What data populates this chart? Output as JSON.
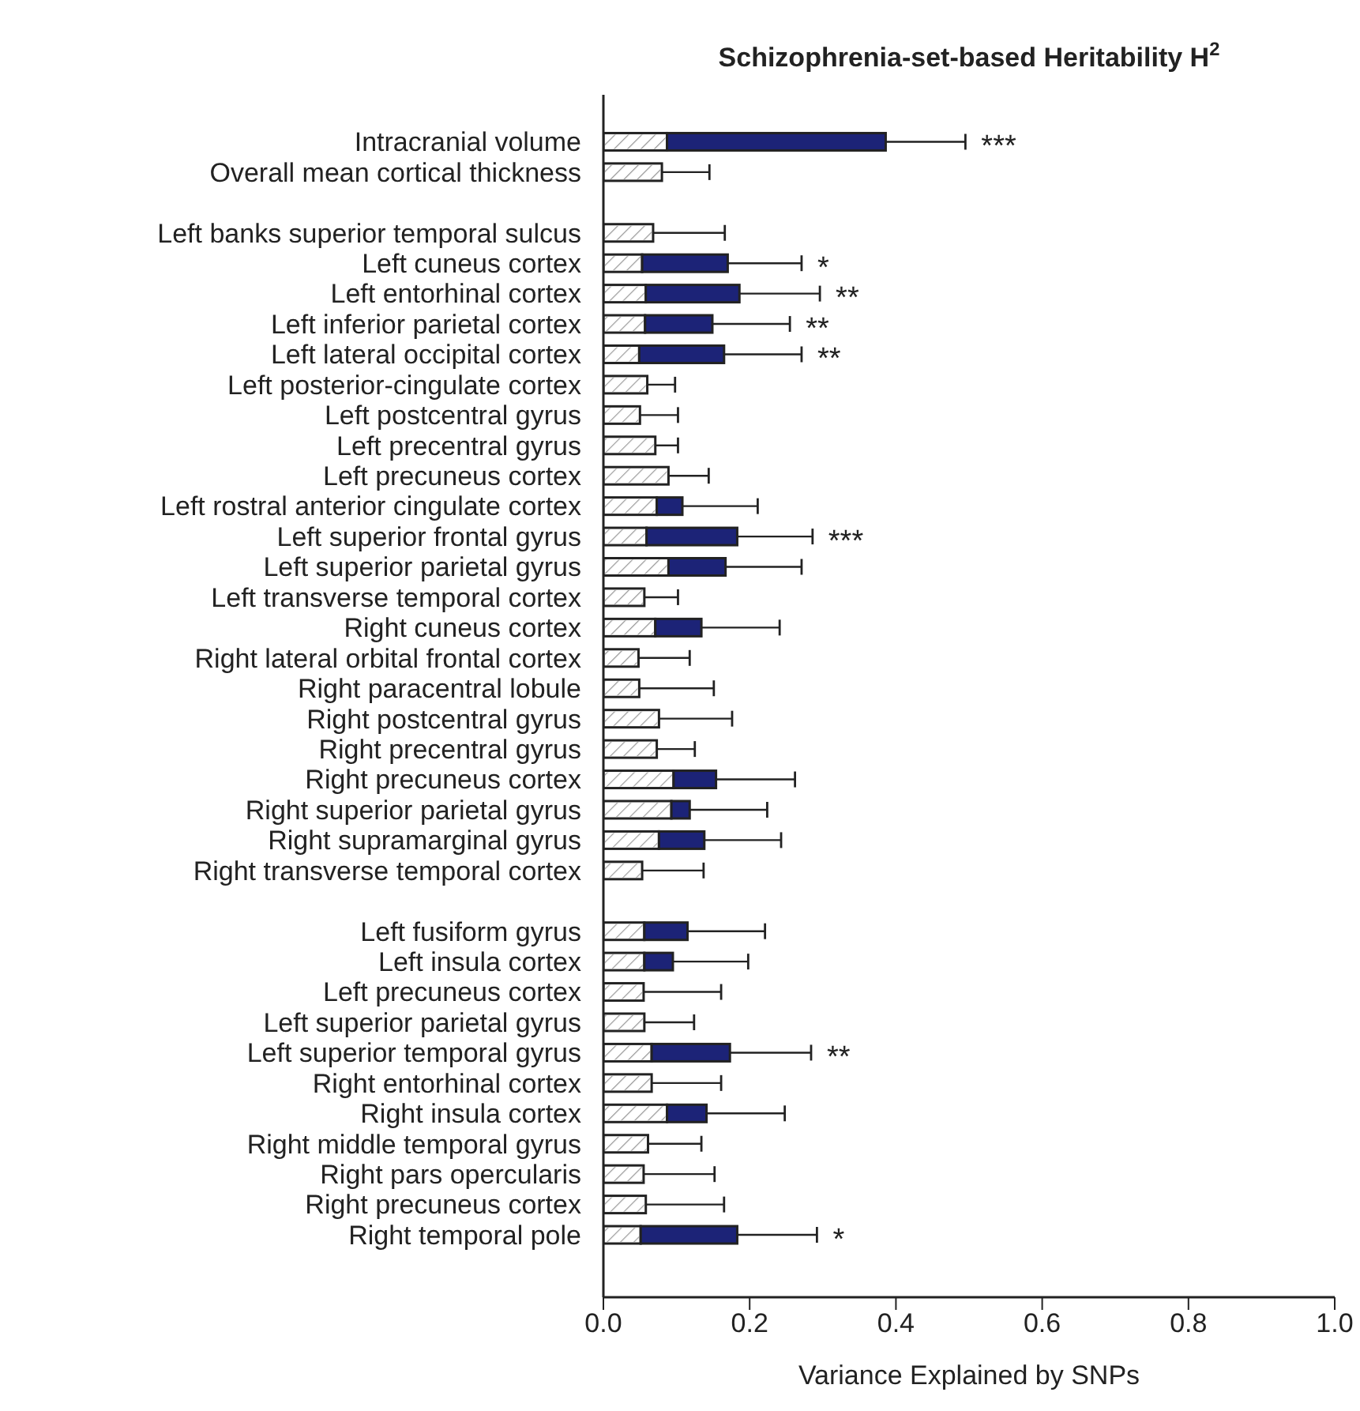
{
  "chart_data": {
    "type": "bar",
    "orientation": "horizontal",
    "stacked": true,
    "title": "Schizophrenia-set-based Heritability H$^{2}$",
    "xlabel": "Variance Explained by SNPs",
    "categories": [
      "Intracranial volume",
      "Overall mean cortical thickness",
      null,
      "Left banks superior temporal sulcus",
      "Left cuneus cortex",
      "Left entorhinal cortex",
      "Left inferior parietal cortex",
      "Left lateral occipital cortex",
      "Left posterior-cingulate cortex",
      "Left postcentral gyrus",
      "Left precentral gyrus",
      "Left precuneus cortex",
      "Left rostral anterior cingulate cortex",
      "Left superior frontal gyrus",
      "Left superior parietal gyrus",
      "Left transverse temporal cortex",
      "Right cuneus cortex",
      "Right lateral orbital frontal cortex",
      "Right paracentral lobule",
      "Right postcentral gyrus",
      "Right precentral gyrus",
      "Right precuneus cortex",
      "Right superior parietal gyrus",
      "Right supramarginal gyrus",
      "Right transverse temporal cortex",
      null,
      "Left fusiform gyrus",
      "Left insula cortex",
      "Left precuneus cortex",
      "Left superior parietal gyrus",
      "Left superior temporal gyrus",
      "Right entorhinal cortex",
      "Right insula cortex",
      "Right middle temporal gyrus",
      "Right pars opercularis",
      "Right precuneus cortex",
      "Right temporal pole"
    ],
    "series": [
      {
        "color": "#ffffff",
        "values": [
          0.087,
          0.08,
          null,
          0.068,
          0.053,
          0.058,
          0.057,
          0.049,
          0.06,
          0.05,
          0.071,
          0.089,
          0.073,
          0.059,
          0.089,
          0.056,
          0.071,
          0.048,
          0.049,
          0.076,
          0.073,
          0.096,
          0.093,
          0.076,
          0.053,
          null,
          0.056,
          0.056,
          0.055,
          0.056,
          0.066,
          0.066,
          0.087,
          0.061,
          0.055,
          0.058,
          0.051
        ],
        "errors": [
          null,
          [
            0.08,
            0.145
          ],
          null,
          [
            0.068,
            0.166
          ],
          null,
          null,
          null,
          null,
          [
            0.06,
            0.098
          ],
          [
            0.05,
            0.102
          ],
          [
            0.071,
            0.102
          ],
          [
            0.089,
            0.144
          ],
          null,
          null,
          null,
          [
            0.056,
            0.102
          ],
          null,
          [
            0.048,
            0.118
          ],
          [
            0.049,
            0.151
          ],
          [
            0.076,
            0.176
          ],
          [
            0.073,
            0.125
          ],
          null,
          null,
          null,
          [
            0.053,
            0.137
          ],
          null,
          null,
          null,
          [
            0.055,
            0.161
          ],
          [
            0.056,
            0.124
          ],
          null,
          [
            0.066,
            0.161
          ],
          null,
          [
            0.061,
            0.134
          ],
          [
            0.055,
            0.152
          ],
          [
            0.058,
            0.165
          ],
          null
        ]
      },
      {
        "color": "#1c2377",
        "values": [
          0.299,
          null,
          null,
          null,
          0.117,
          0.128,
          0.092,
          0.116,
          null,
          null,
          null,
          null,
          0.035,
          0.124,
          0.078,
          null,
          0.063,
          null,
          null,
          null,
          null,
          0.058,
          0.025,
          0.062,
          null,
          null,
          0.059,
          0.039,
          null,
          null,
          0.107,
          null,
          0.054,
          null,
          null,
          null,
          0.132
        ],
        "errors": [
          [
            0.386,
            0.495
          ],
          null,
          null,
          null,
          [
            0.17,
            0.271
          ],
          [
            0.186,
            0.296
          ],
          [
            0.149,
            0.255
          ],
          [
            0.165,
            0.271
          ],
          null,
          null,
          null,
          null,
          [
            0.108,
            0.211
          ],
          [
            0.183,
            0.286
          ],
          [
            0.167,
            0.271
          ],
          null,
          [
            0.134,
            0.241
          ],
          null,
          null,
          null,
          null,
          [
            0.154,
            0.262
          ],
          [
            0.118,
            0.224
          ],
          [
            0.138,
            0.243
          ],
          null,
          null,
          [
            0.115,
            0.221
          ],
          [
            0.095,
            0.198
          ],
          null,
          null,
          [
            0.173,
            0.284
          ],
          null,
          [
            0.141,
            0.248
          ],
          null,
          null,
          null,
          [
            0.183,
            0.292
          ]
        ]
      }
    ],
    "xlim": [
      0,
      1
    ],
    "xticks": [
      {
        "value": 0,
        "label": "0.0"
      },
      {
        "value": 0.2,
        "label": "0.2"
      },
      {
        "value": 0.4,
        "label": "0.4"
      },
      {
        "value": 0.6,
        "label": "0.6"
      },
      {
        "value": 0.8,
        "label": "0.8"
      },
      {
        "value": 1,
        "label": "1.0"
      }
    ],
    "grid": false,
    "legend": false,
    "annotations": [
      {
        "text": "***",
        "x": 0.495,
        "y": "Intracranial volume"
      },
      {
        "text": "*",
        "x": 0.271,
        "y": "Left cuneus cortex"
      },
      {
        "text": "**",
        "x": 0.296,
        "y": "Left entorhinal cortex"
      },
      {
        "text": "**",
        "x": 0.255,
        "y": "Left inferior parietal cortex"
      },
      {
        "text": "**",
        "x": 0.271,
        "y": "Left lateral occipital cortex"
      },
      {
        "text": "***",
        "x": 0.286,
        "y": "Left superior frontal gyrus"
      },
      {
        "text": "**",
        "x": 0.284,
        "y": "Left superior temporal gyrus"
      },
      {
        "text": "*",
        "x": 0.292,
        "y": "Right temporal pole"
      }
    ]
  }
}
